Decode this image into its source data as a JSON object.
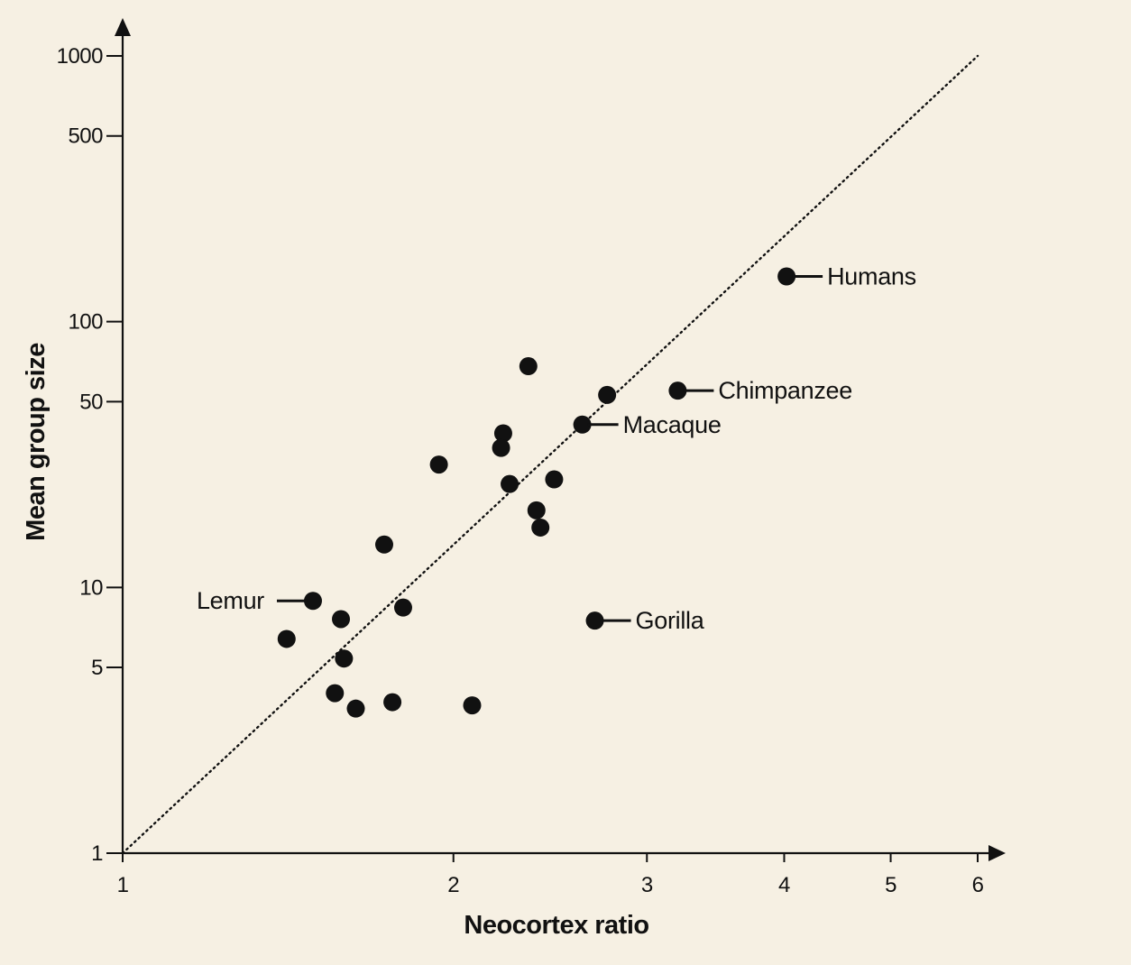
{
  "chart_data": {
    "type": "scatter",
    "xlabel": "Neocortex ratio",
    "ylabel": "Mean group size",
    "x_scale": "log",
    "y_scale": "log",
    "xlim": [
      1,
      6
    ],
    "ylim": [
      1,
      1000
    ],
    "x_ticks": [
      "1",
      "2",
      "3",
      "4",
      "5",
      "6"
    ],
    "y_ticks": [
      "1",
      "5",
      "10",
      "50",
      "100",
      "500",
      "1000"
    ],
    "grid": false,
    "trend_line": {
      "style": "dotted",
      "from": [
        1,
        1
      ],
      "to": [
        6,
        1000
      ]
    },
    "points": [
      {
        "x": 4.02,
        "y": 148,
        "label": "Humans"
      },
      {
        "x": 3.2,
        "y": 55,
        "label": "Chimpanzee"
      },
      {
        "x": 2.62,
        "y": 41,
        "label": "Macaque"
      },
      {
        "x": 2.69,
        "y": 7.5,
        "label": "Gorilla"
      },
      {
        "x": 1.49,
        "y": 8.9,
        "label": "Lemur"
      },
      {
        "x": 2.34,
        "y": 68,
        "label": ""
      },
      {
        "x": 2.76,
        "y": 53,
        "label": ""
      },
      {
        "x": 2.22,
        "y": 38,
        "label": ""
      },
      {
        "x": 2.21,
        "y": 33.5,
        "label": ""
      },
      {
        "x": 1.94,
        "y": 29,
        "label": ""
      },
      {
        "x": 2.47,
        "y": 25.5,
        "label": ""
      },
      {
        "x": 2.25,
        "y": 24.5,
        "label": ""
      },
      {
        "x": 2.38,
        "y": 19.5,
        "label": ""
      },
      {
        "x": 2.4,
        "y": 16.8,
        "label": ""
      },
      {
        "x": 1.73,
        "y": 14.5,
        "label": ""
      },
      {
        "x": 1.8,
        "y": 8.4,
        "label": ""
      },
      {
        "x": 1.58,
        "y": 7.6,
        "label": ""
      },
      {
        "x": 1.41,
        "y": 6.4,
        "label": ""
      },
      {
        "x": 1.59,
        "y": 5.4,
        "label": ""
      },
      {
        "x": 1.56,
        "y": 4.0,
        "label": ""
      },
      {
        "x": 1.63,
        "y": 3.5,
        "label": ""
      },
      {
        "x": 1.76,
        "y": 3.7,
        "label": ""
      },
      {
        "x": 2.08,
        "y": 3.6,
        "label": ""
      }
    ]
  },
  "colors": {
    "background": "#f6f0e3",
    "ink": "#111111"
  }
}
